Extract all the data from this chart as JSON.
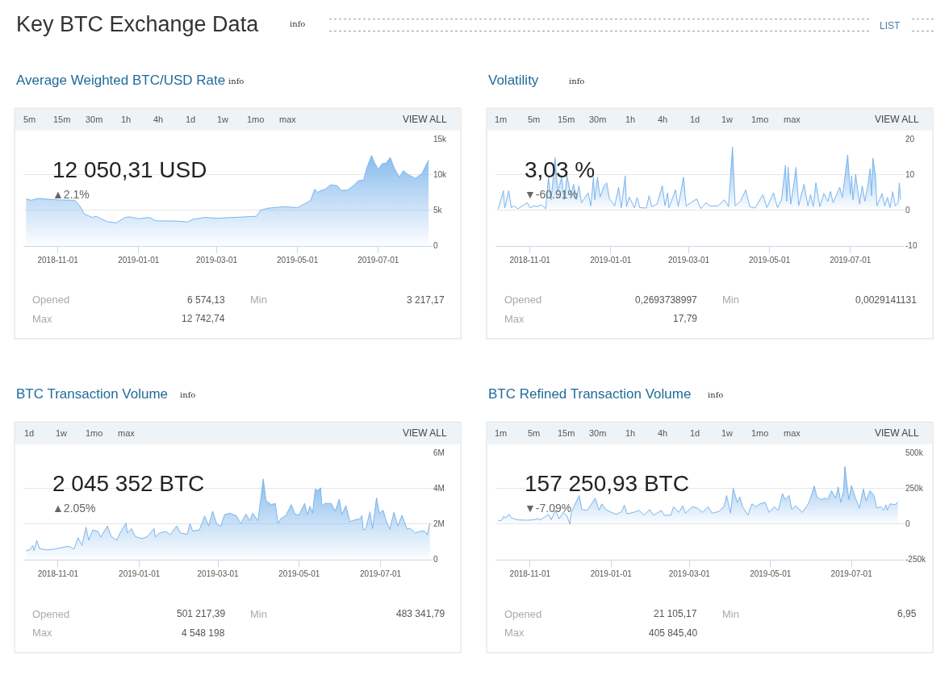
{
  "chart_data": [
    {
      "type": "other",
      "title": "Key BTC Exchange Data",
      "annotations": [
        "info",
        "LIST"
      ]
    },
    {
      "type": "area",
      "title": "Average Weighted BTC/USD Rate",
      "subtitle": "12 050,31 USD",
      "color": "#7cb5ec",
      "grid": "y",
      "legend": false,
      "marker": "none",
      "annotations": [
        "info",
        "5m",
        "15m",
        "30m",
        "1h",
        "4h",
        "1d",
        "1w",
        "1mo",
        "max",
        "VIEW ALL",
        "▲2.1%",
        "Opened",
        "6 574,13",
        "Min",
        "3 217,17",
        "Max",
        "12 742,74"
      ],
      "xlim": [
        "2018-10-06",
        "2019-08-11"
      ],
      "xticks": [
        "2018-11-01",
        "2019-01-01",
        "2019-03-01",
        "2019-05-01",
        "2019-07-01"
      ],
      "ylim": [
        0,
        15000
      ],
      "yticks": [
        0,
        {
          "value": 5000,
          "label": "5k"
        },
        {
          "value": 10000,
          "label": "10k"
        },
        {
          "value": 15000,
          "label": "15k"
        }
      ],
      "x": [
        "2018-10-08",
        "2018-10-12",
        "2018-10-17",
        "2018-11-01",
        "2018-11-14",
        "2018-11-18",
        "2018-11-21",
        "2018-11-27",
        "2018-11-30",
        "2018-12-08",
        "2018-12-15",
        "2018-12-22",
        "2018-12-25",
        "2019-01-01",
        "2019-01-09",
        "2019-01-14",
        "2019-01-29",
        "2019-02-07",
        "2019-02-11",
        "2019-02-20",
        "2019-03-01",
        "2019-03-18",
        "2019-03-31",
        "2019-04-03",
        "2019-04-08",
        "2019-04-21",
        "2019-05-01",
        "2019-05-07",
        "2019-05-11",
        "2019-05-14",
        "2019-05-16",
        "2019-05-19",
        "2019-05-22",
        "2019-05-26",
        "2019-05-31",
        "2019-06-03",
        "2019-06-08",
        "2019-06-13",
        "2019-06-16",
        "2019-06-20",
        "2019-06-22",
        "2019-06-26",
        "2019-06-28",
        "2019-07-01",
        "2019-07-04",
        "2019-07-07",
        "2019-07-10",
        "2019-07-13",
        "2019-07-17",
        "2019-07-20",
        "2019-07-24",
        "2019-07-29",
        "2019-08-03",
        "2019-08-08"
      ],
      "values": [
        6574,
        6400,
        6650,
        6450,
        6400,
        5500,
        4460,
        3980,
        4150,
        3400,
        3217,
        3980,
        4060,
        3800,
        3980,
        3500,
        3470,
        3350,
        3700,
        3980,
        3860,
        4020,
        4140,
        4980,
        5260,
        5500,
        5340,
        5980,
        6370,
        7970,
        7500,
        7770,
        7970,
        8570,
        8450,
        7770,
        7850,
        8570,
        9160,
        9240,
        10760,
        12700,
        11750,
        10760,
        11550,
        11630,
        12430,
        10960,
        9640,
        10560,
        9960,
        9480,
        10160,
        12050
      ]
    },
    {
      "type": "area",
      "title": "Volatility",
      "subtitle": "3,03 %",
      "color": "#7cb5ec",
      "grid": "y",
      "legend": false,
      "marker": "none",
      "annotations": [
        "info",
        "1m",
        "5m",
        "15m",
        "30m",
        "1h",
        "4h",
        "1d",
        "1w",
        "1mo",
        "max",
        "VIEW ALL",
        "▼-60.91%",
        "Opened",
        "0,2693738997",
        "Min",
        "0,0029141131",
        "Max",
        "17,79"
      ],
      "xlim": [
        "2018-10-06",
        "2019-08-11"
      ],
      "xticks": [
        "2018-11-01",
        "2019-01-01",
        "2019-03-01",
        "2019-05-01",
        "2019-07-01"
      ],
      "ylim": [
        -10,
        20
      ],
      "yticks": [
        -10,
        0,
        10,
        20
      ],
      "x": [
        "2018-10-08",
        "2018-10-12",
        "2018-10-13",
        "2018-10-16",
        "2018-10-18",
        "2018-10-20",
        "2018-10-23",
        "2018-10-30",
        "2018-11-01",
        "2018-11-04",
        "2018-11-06",
        "2018-11-10",
        "2018-11-13",
        "2018-11-15",
        "2018-11-17",
        "2018-11-20",
        "2018-11-22",
        "2018-11-25",
        "2018-11-27",
        "2018-11-29",
        "2018-12-02",
        "2018-12-04",
        "2018-12-06",
        "2018-12-08",
        "2018-12-10",
        "2018-12-15",
        "2018-12-17",
        "2018-12-19",
        "2018-12-20",
        "2018-12-22",
        "2018-12-24",
        "2018-12-27",
        "2018-12-29",
        "2018-12-31",
        "2019-01-04",
        "2019-01-07",
        "2019-01-09",
        "2019-01-12",
        "2019-01-13",
        "2019-01-15",
        "2019-01-19",
        "2019-01-21",
        "2019-01-23",
        "2019-01-28",
        "2019-01-30",
        "2019-02-01",
        "2019-02-05",
        "2019-02-09",
        "2019-02-11",
        "2019-02-13",
        "2019-02-14",
        "2019-02-19",
        "2019-02-21",
        "2019-02-25",
        "2019-02-27",
        "2019-03-07",
        "2019-03-10",
        "2019-03-14",
        "2019-03-17",
        "2019-03-23",
        "2019-03-28",
        "2019-03-31",
        "2019-04-03",
        "2019-04-05",
        "2019-04-09",
        "2019-04-13",
        "2019-04-16",
        "2019-04-20",
        "2019-04-26",
        "2019-04-29",
        "2019-05-04",
        "2019-05-07",
        "2019-05-10",
        "2019-05-13",
        "2019-05-14",
        "2019-05-15",
        "2019-05-17",
        "2019-05-19",
        "2019-05-21",
        "2019-05-23",
        "2019-05-27",
        "2019-05-30",
        "2019-06-01",
        "2019-06-03",
        "2019-06-05",
        "2019-06-08",
        "2019-06-11",
        "2019-06-14",
        "2019-06-16",
        "2019-06-18",
        "2019-06-23",
        "2019-06-25",
        "2019-06-29",
        "2019-07-01",
        "2019-07-02",
        "2019-07-03",
        "2019-07-05",
        "2019-07-08",
        "2019-07-10",
        "2019-07-12",
        "2019-07-14",
        "2019-07-16",
        "2019-07-17",
        "2019-07-18",
        "2019-07-20",
        "2019-07-21",
        "2019-07-25",
        "2019-07-27",
        "2019-07-29",
        "2019-07-31",
        "2019-08-02",
        "2019-08-04",
        "2019-08-06",
        "2019-08-07",
        "2019-08-08"
      ],
      "values": [
        0.27,
        5.5,
        0.6,
        5.5,
        0.7,
        1.2,
        0.4,
        2.1,
        0.7,
        1.2,
        1.0,
        1.5,
        0.4,
        9.3,
        2.9,
        14.8,
        5.3,
        9.3,
        2.9,
        9.7,
        4.1,
        7.3,
        2.9,
        6.9,
        2.1,
        4.9,
        1.2,
        9.3,
        2.9,
        9.3,
        3.7,
        6.9,
        7.7,
        3.3,
        1.2,
        6.5,
        0.7,
        9.7,
        1.0,
        3.7,
        0.7,
        3.6,
        0.7,
        0.6,
        4.1,
        1.0,
        1.7,
        6.9,
        1.3,
        4.9,
        0.7,
        5.7,
        1.0,
        9.3,
        1.2,
        3.2,
        0.4,
        2.1,
        1.2,
        1.2,
        2.9,
        1.0,
        17.79,
        1.2,
        2.5,
        5.7,
        1.0,
        0.6,
        4.4,
        0.7,
        4.9,
        0.7,
        2.9,
        12.6,
        2.5,
        12.1,
        1.7,
        6.5,
        12.1,
        1.3,
        7.3,
        1.2,
        4.4,
        1.0,
        7.7,
        1.0,
        4.7,
        2.5,
        5.3,
        2.1,
        6.5,
        3.6,
        15.6,
        4.5,
        9.7,
        2.9,
        10.1,
        1.7,
        6.9,
        2.5,
        6.5,
        11.7,
        4.1,
        14.7,
        9.7,
        1.2,
        4.7,
        1.2,
        3.6,
        0.7,
        5.2,
        1.2,
        2.1,
        7.7,
        3.03
      ]
    },
    {
      "type": "area",
      "title": "BTC Transaction Volume",
      "subtitle": "2 045 352 BTC",
      "color": "#7cb5ec",
      "grid": "y",
      "legend": false,
      "marker": "none",
      "annotations": [
        "info",
        "1d",
        "1w",
        "1mo",
        "max",
        "VIEW ALL",
        "▲2.05%",
        "Opened",
        "501 217,39",
        "Min",
        "483 341,79",
        "Max",
        "4 548 198"
      ],
      "xlim": [
        "2018-10-06",
        "2019-08-09"
      ],
      "xticks": [
        "2018-11-01",
        "2019-01-01",
        "2019-03-01",
        "2019-05-01",
        "2019-07-01"
      ],
      "ylim": [
        0,
        6000000
      ],
      "yticks": [
        0,
        {
          "value": 2000000,
          "label": "2M"
        },
        {
          "value": 4000000,
          "label": "4M"
        },
        {
          "value": 6000000,
          "label": "6M"
        }
      ],
      "x": [
        "2018-10-08",
        "2018-10-11",
        "2018-10-13",
        "2018-10-14",
        "2018-10-16",
        "2018-10-18",
        "2018-10-23",
        "2018-10-30",
        "2018-11-03",
        "2018-11-09",
        "2018-11-13",
        "2018-11-16",
        "2018-11-19",
        "2018-11-22",
        "2018-11-24",
        "2018-11-27",
        "2018-12-01",
        "2018-12-03",
        "2018-12-08",
        "2018-12-11",
        "2018-12-15",
        "2018-12-17",
        "2018-12-22",
        "2018-12-23",
        "2018-12-26",
        "2018-12-29",
        "2019-01-03",
        "2019-01-07",
        "2019-01-12",
        "2019-01-13",
        "2019-01-16",
        "2019-01-21",
        "2019-01-24",
        "2019-01-29",
        "2019-02-01",
        "2019-02-06",
        "2019-02-08",
        "2019-02-10",
        "2019-02-15",
        "2019-02-19",
        "2019-02-22",
        "2019-02-25",
        "2019-02-28",
        "2019-03-03",
        "2019-03-06",
        "2019-03-10",
        "2019-03-15",
        "2019-03-18",
        "2019-03-22",
        "2019-03-25",
        "2019-03-27",
        "2019-03-31",
        "2019-04-04",
        "2019-04-06",
        "2019-04-10",
        "2019-04-13",
        "2019-04-15",
        "2019-04-17",
        "2019-04-21",
        "2019-04-25",
        "2019-04-28",
        "2019-05-01",
        "2019-05-05",
        "2019-05-07",
        "2019-05-09",
        "2019-05-11",
        "2019-05-13",
        "2019-05-15",
        "2019-05-17",
        "2019-05-18",
        "2019-05-20",
        "2019-05-25",
        "2019-05-28",
        "2019-05-31",
        "2019-06-02",
        "2019-06-05",
        "2019-06-08",
        "2019-06-12",
        "2019-06-16",
        "2019-06-17",
        "2019-06-18",
        "2019-06-20",
        "2019-06-23",
        "2019-06-25",
        "2019-06-28",
        "2019-06-30",
        "2019-07-03",
        "2019-07-05",
        "2019-07-08",
        "2019-07-11",
        "2019-07-14",
        "2019-07-17",
        "2019-07-21",
        "2019-07-23",
        "2019-07-27",
        "2019-07-30",
        "2019-08-03",
        "2019-08-05",
        "2019-08-07"
      ],
      "values": [
        501217,
        560000,
        790000,
        510000,
        1080000,
        630000,
        550000,
        600000,
        670000,
        760000,
        600000,
        1240000,
        800000,
        1830000,
        1100000,
        1670000,
        1590000,
        1270000,
        1900000,
        1300000,
        1100000,
        1430000,
        2060000,
        1500000,
        1750000,
        1300000,
        1190000,
        1300000,
        1750000,
        1270000,
        1500000,
        1590000,
        1400000,
        1900000,
        1500000,
        1430000,
        2030000,
        1620000,
        1670000,
        2460000,
        1900000,
        2730000,
        2030000,
        1870000,
        2540000,
        2620000,
        2460000,
        2030000,
        2570000,
        2190000,
        2620000,
        2190000,
        4548198,
        3330000,
        3100000,
        3170000,
        2030000,
        2300000,
        2500000,
        3100000,
        2540000,
        2540000,
        3170000,
        2540000,
        3000000,
        2620000,
        3970000,
        3890000,
        4050000,
        3000000,
        3170000,
        3170000,
        2730000,
        3410000,
        2540000,
        3050000,
        2140000,
        2250000,
        2300000,
        2500000,
        1670000,
        1750000,
        2700000,
        1750000,
        3490000,
        2620000,
        2780000,
        2220000,
        1710000,
        2670000,
        1900000,
        2500000,
        1710000,
        1780000,
        1500000,
        1590000,
        1620000,
        1400000,
        2045352
      ]
    },
    {
      "type": "area",
      "title": "BTC Refined Transaction Volume",
      "subtitle": "157 250,93 BTC",
      "color": "#7cb5ec",
      "grid": "y",
      "legend": false,
      "marker": "none",
      "annotations": [
        "info",
        "1m",
        "5m",
        "15m",
        "30m",
        "1h",
        "4h",
        "1d",
        "1w",
        "1mo",
        "max",
        "VIEW ALL",
        "▼-7.09%",
        "Opened",
        "21 105,17",
        "Min",
        "6,95",
        "Max",
        "405 845,40"
      ],
      "xlim": [
        "2018-10-06",
        "2019-08-10"
      ],
      "xticks": [
        "2018-11-01",
        "2019-01-01",
        "2019-03-01",
        "2019-05-01",
        "2019-07-01"
      ],
      "ylim": [
        -250000,
        500000
      ],
      "yticks": [
        {
          "value": -250000,
          "label": "-250k"
        },
        0,
        {
          "value": 250000,
          "label": "250k"
        },
        {
          "value": 500000,
          "label": "500k"
        }
      ],
      "x": [
        "2018-10-08",
        "2018-10-11",
        "2018-10-12",
        "2018-10-14",
        "2018-10-16",
        "2018-10-18",
        "2018-10-23",
        "2018-10-30",
        "2018-11-03",
        "2018-11-07",
        "2018-11-09",
        "2018-11-15",
        "2018-11-17",
        "2018-11-20",
        "2018-11-23",
        "2018-11-26",
        "2018-11-29",
        "2018-12-01",
        "2018-12-02",
        "2018-12-04",
        "2018-12-08",
        "2018-12-10",
        "2018-12-14",
        "2018-12-18",
        "2018-12-20",
        "2018-12-23",
        "2018-12-25",
        "2018-12-28",
        "2018-12-31",
        "2019-01-05",
        "2019-01-09",
        "2019-01-11",
        "2019-01-13",
        "2019-01-18",
        "2019-01-22",
        "2019-01-26",
        "2019-01-30",
        "2019-02-02",
        "2019-02-08",
        "2019-02-10",
        "2019-02-15",
        "2019-02-17",
        "2019-02-21",
        "2019-02-24",
        "2019-02-26",
        "2019-03-03",
        "2019-03-07",
        "2019-03-11",
        "2019-03-15",
        "2019-03-18",
        "2019-03-23",
        "2019-03-27",
        "2019-03-29",
        "2019-04-01",
        "2019-04-03",
        "2019-04-06",
        "2019-04-08",
        "2019-04-10",
        "2019-04-14",
        "2019-04-17",
        "2019-04-20",
        "2019-04-23",
        "2019-04-27",
        "2019-04-30",
        "2019-05-04",
        "2019-05-07",
        "2019-05-10",
        "2019-05-12",
        "2019-05-15",
        "2019-05-17",
        "2019-05-20",
        "2019-05-25",
        "2019-05-28",
        "2019-05-30",
        "2019-06-03",
        "2019-06-05",
        "2019-06-08",
        "2019-06-11",
        "2019-06-13",
        "2019-06-16",
        "2019-06-19",
        "2019-06-21",
        "2019-06-23",
        "2019-06-25",
        "2019-06-26",
        "2019-06-29",
        "2019-07-01",
        "2019-07-04",
        "2019-07-07",
        "2019-07-10",
        "2019-07-12",
        "2019-07-15",
        "2019-07-18",
        "2019-07-20",
        "2019-07-23",
        "2019-07-25",
        "2019-07-27",
        "2019-07-28",
        "2019-07-30",
        "2019-08-03",
        "2019-08-05"
      ],
      "values": [
        21105,
        30000,
        54000,
        44000,
        69000,
        44000,
        30000,
        28000,
        30000,
        38000,
        30000,
        69000,
        30000,
        97000,
        38000,
        83000,
        54000,
        6.95,
        77000,
        123000,
        202000,
        103000,
        97000,
        153000,
        183000,
        97000,
        143000,
        103000,
        89000,
        69000,
        89000,
        133000,
        73000,
        83000,
        97000,
        63000,
        103000,
        63000,
        97000,
        63000,
        63000,
        123000,
        83000,
        129000,
        77000,
        123000,
        113000,
        83000,
        123000,
        77000,
        89000,
        123000,
        202000,
        77000,
        252000,
        153000,
        192000,
        123000,
        63000,
        143000,
        123000,
        143000,
        153000,
        83000,
        123000,
        97000,
        216000,
        173000,
        202000,
        103000,
        129000,
        83000,
        123000,
        153000,
        268000,
        192000,
        173000,
        183000,
        173000,
        236000,
        183000,
        262000,
        153000,
        232000,
        405845,
        173000,
        272000,
        183000,
        113000,
        248000,
        163000,
        236000,
        202000,
        113000,
        123000,
        97000,
        137000,
        97000,
        143000,
        137000,
        157251
      ]
    }
  ]
}
